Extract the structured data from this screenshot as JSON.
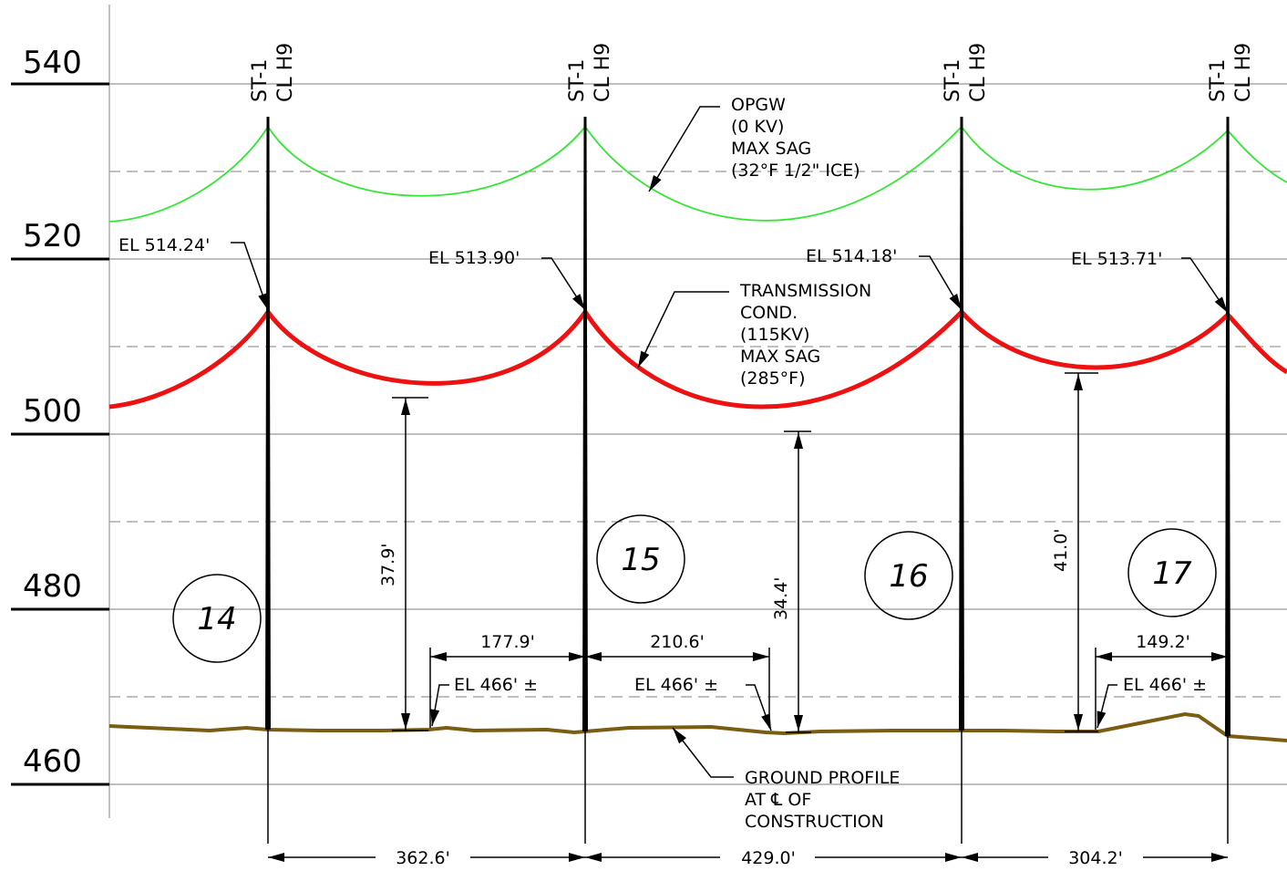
{
  "elevation_axis": {
    "labels": [
      "540",
      "520",
      "500",
      "480",
      "460"
    ]
  },
  "towers": [
    {
      "type": "ST-1",
      "cl": "CL H9",
      "number": "14",
      "attach_el": "EL 514.24'"
    },
    {
      "type": "ST-1",
      "cl": "CL H9",
      "number": "15",
      "attach_el": "EL 513.90'"
    },
    {
      "type": "ST-1",
      "cl": "CL H9",
      "number": "16",
      "attach_el": "EL 514.18'"
    },
    {
      "type": "ST-1",
      "cl": "CL H9",
      "number": "17",
      "attach_el": "EL 513.71'"
    }
  ],
  "spans": [
    "362.6'",
    "429.0'",
    "304.2'"
  ],
  "clearances": [
    "37.9'",
    "34.4'",
    "41.0'"
  ],
  "low_point_offsets": [
    "177.9'",
    "210.6'",
    "149.2'"
  ],
  "ground_elevations": [
    "EL 466' ±",
    "EL 466' ±",
    "EL 466' ±"
  ],
  "opgw_note": [
    "OPGW",
    "(0 KV)",
    "MAX SAG",
    "(32°F 1/2\" ICE)"
  ],
  "conductor_note": [
    "TRANSMISSION",
    "COND.",
    "(115KV)",
    "MAX SAG",
    "(285°F)"
  ],
  "ground_note": [
    "GROUND PROFILE",
    "AT ℄ OF",
    "CONSTRUCTION"
  ],
  "colors": {
    "opgw": "#33e633",
    "conductor": "#ee1111",
    "ground": "#7a5c12",
    "tower": "#000000"
  }
}
